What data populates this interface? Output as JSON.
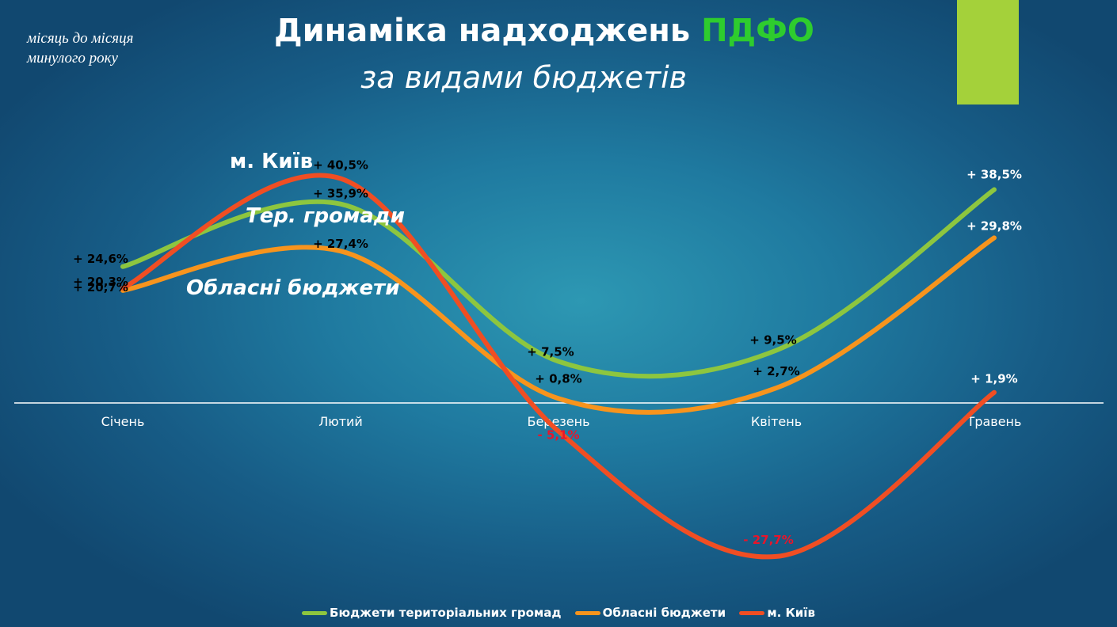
{
  "note": {
    "line1": "місяць до місяця",
    "line2": "минулого року"
  },
  "title": {
    "main": "Динаміка надходжень",
    "accent": "ПДФО",
    "subtitle": "за видами бюджетів"
  },
  "colors": {
    "green": "#8dc63f",
    "orange": "#f7941d",
    "red": "#f04e23",
    "accent": "#2ecc2e",
    "bar": "#a4d13a"
  },
  "chart_data": {
    "type": "line",
    "categories": [
      "Січень",
      "Лютий",
      "Березень",
      "Квітень",
      "Травень"
    ],
    "ylim": [
      -35,
      55
    ],
    "series": [
      {
        "name": "Бюджети територіальних громад",
        "values": [
          24.6,
          35.9,
          7.5,
          9.5,
          38.5
        ],
        "labels": [
          "+ 24,6%",
          "+ 35,9%",
          "+ 7,5%",
          "+ 9,5%",
          "+ 38,5%"
        ],
        "color": "#8dc63f"
      },
      {
        "name": "Обласні бюджети",
        "values": [
          20.3,
          27.4,
          0.8,
          2.7,
          29.8
        ],
        "labels": [
          "+ 20,3%",
          "+ 27,4%",
          "+ 0,8%",
          "+ 2,7%",
          "+ 29,8%"
        ],
        "color": "#f7941d"
      },
      {
        "name": "м. Київ",
        "values": [
          20.7,
          40.5,
          -5.1,
          -27.7,
          1.9
        ],
        "labels": [
          "+ 20,7%",
          "+ 40,5%",
          "- 5,1%",
          "- 27,7%",
          "+ 1,9%"
        ],
        "color": "#f04e23"
      }
    ],
    "annotations": [
      "м. Київ",
      "Тер. громади",
      "Обласні бюджети"
    ],
    "legend": "bottom",
    "grid": false
  }
}
